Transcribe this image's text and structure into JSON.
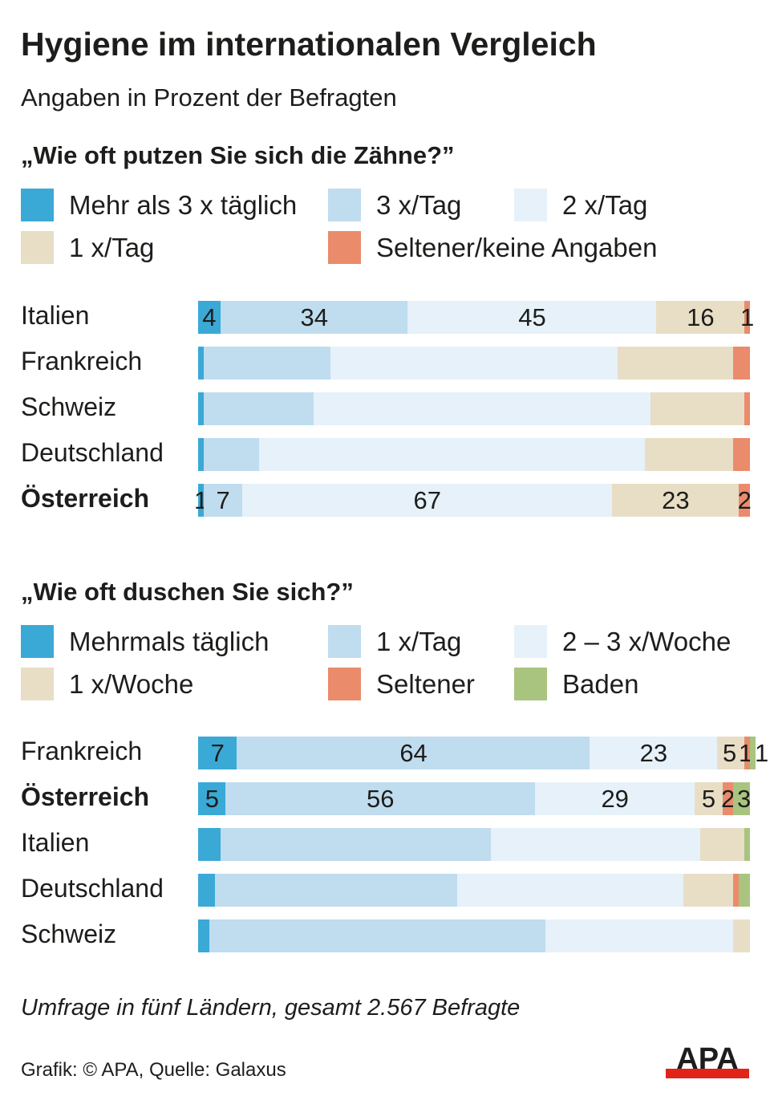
{
  "title": "Hygiene im internationalen Vergleich",
  "subtitle": "Angaben in Prozent der Befragten",
  "note": "Umfrage in fünf Ländern, gesamt 2.567 Befragte",
  "credit": "Grafik: © APA, Quelle: Galaxus",
  "logo_text": "APA",
  "chart_data": [
    {
      "type": "bar",
      "orientation": "horizontal-stacked-100",
      "title": "„Wie oft putzen Sie sich die Zähne?”",
      "categories": [
        "Italien",
        "Frankreich",
        "Schweiz",
        "Deutschland",
        "Österreich"
      ],
      "highlight": "Österreich",
      "labeled_rows": [
        "Italien",
        "Österreich"
      ],
      "xlim": [
        0,
        100
      ],
      "series": [
        {
          "name": "Mehr als 3 x täglich",
          "color": "#3aa9d6",
          "values": [
            4,
            1,
            1,
            1,
            1
          ]
        },
        {
          "name": "3 x/Tag",
          "color": "#c0dcef",
          "values": [
            34,
            23,
            20,
            10,
            7
          ]
        },
        {
          "name": "2 x/Tag",
          "color": "#e6f1f9",
          "values": [
            45,
            52,
            61,
            70,
            67
          ]
        },
        {
          "name": "1 x/Tag",
          "color": "#e8dec6",
          "values": [
            16,
            21,
            17,
            16,
            23
          ]
        },
        {
          "name": "Seltener/keine Angaben",
          "color": "#ea8b6c",
          "values": [
            1,
            3,
            1,
            3,
            2
          ]
        }
      ]
    },
    {
      "type": "bar",
      "orientation": "horizontal-stacked-100",
      "title": "„Wie oft duschen Sie sich?”",
      "categories": [
        "Frankreich",
        "Österreich",
        "Italien",
        "Deutschland",
        "Schweiz"
      ],
      "highlight": "Österreich",
      "labeled_rows": [
        "Frankreich",
        "Österreich"
      ],
      "xlim": [
        0,
        100
      ],
      "series": [
        {
          "name": "Mehrmals täglich",
          "color": "#3aa9d6",
          "values": [
            7,
            5,
            4,
            3,
            2
          ]
        },
        {
          "name": "1 x/Tag",
          "color": "#c0dcef",
          "values": [
            64,
            56,
            49,
            44,
            61
          ]
        },
        {
          "name": "2 – 3 x/Woche",
          "color": "#e6f1f9",
          "values": [
            23,
            29,
            38,
            41,
            34
          ]
        },
        {
          "name": "1 x/Woche",
          "color": "#e8dec6",
          "values": [
            5,
            5,
            8,
            9,
            3
          ]
        },
        {
          "name": "Seltener",
          "color": "#ea8b6c",
          "values": [
            1,
            2,
            0,
            1,
            0
          ]
        },
        {
          "name": "Baden",
          "color": "#a9c47f",
          "values": [
            1,
            3,
            1,
            2,
            0
          ]
        }
      ]
    }
  ]
}
